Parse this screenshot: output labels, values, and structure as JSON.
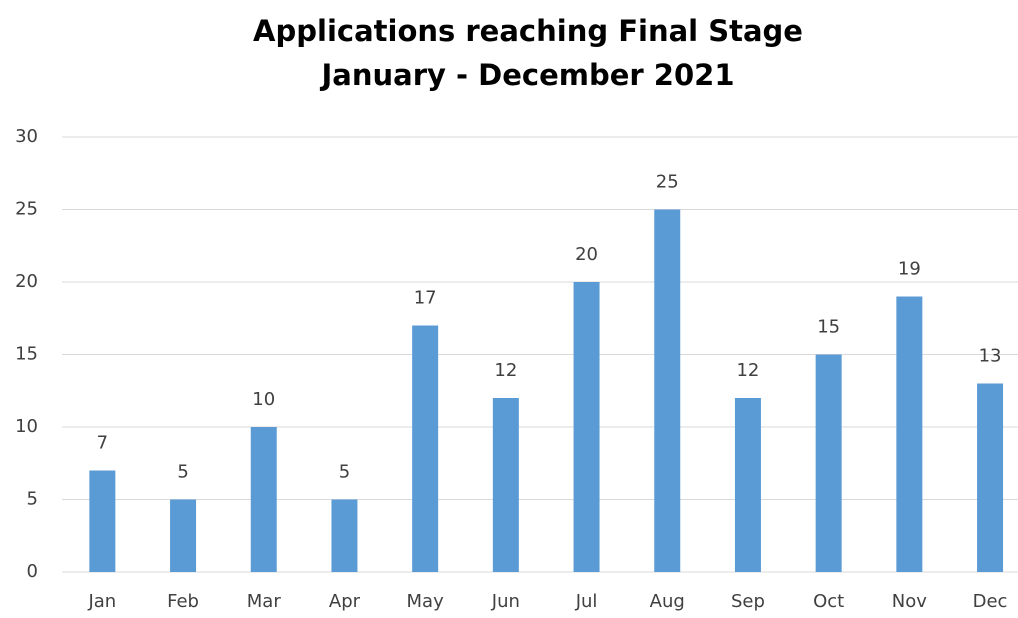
{
  "chart_data": {
    "type": "bar",
    "title": "Applications reaching Final Stage",
    "subtitle": "January - December 2021",
    "categories": [
      "Jan",
      "Feb",
      "Mar",
      "Apr",
      "May",
      "Jun",
      "Jul",
      "Aug",
      "Sep",
      "Oct",
      "Nov",
      "Dec"
    ],
    "values": [
      7,
      5,
      10,
      5,
      17,
      12,
      20,
      25,
      12,
      15,
      19,
      13
    ],
    "color": "#5b9bd5",
    "ylim": [
      0,
      30
    ],
    "yticks": [
      0,
      5,
      10,
      15,
      20,
      25,
      30
    ],
    "grid": true,
    "data_labels": true
  }
}
